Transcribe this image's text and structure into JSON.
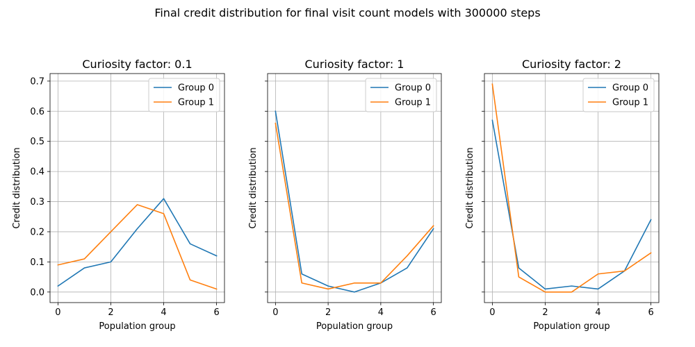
{
  "figure": {
    "suptitle": "Final credit distribution for final visit count models with 300000 steps"
  },
  "chart_data": [
    {
      "type": "line",
      "title": "Curiosity factor: 0.1",
      "xlabel": "Population group",
      "ylabel": "Credit distribution",
      "x": [
        0,
        1,
        2,
        3,
        4,
        5,
        6
      ],
      "xticks": [
        0,
        2,
        4,
        6
      ],
      "yticks": [
        0.0,
        0.1,
        0.2,
        0.3,
        0.4,
        0.5,
        0.6,
        0.7
      ],
      "xlim": [
        -0.3,
        6.3
      ],
      "ylim": [
        -0.035,
        0.725
      ],
      "grid": true,
      "legend": "top-right",
      "show_ytick_labels": true,
      "series": [
        {
          "name": "Group 0",
          "color": "#1f77b4",
          "values": [
            0.02,
            0.08,
            0.1,
            0.21,
            0.31,
            0.16,
            0.12
          ]
        },
        {
          "name": "Group 1",
          "color": "#ff7f0e",
          "values": [
            0.09,
            0.11,
            0.2,
            0.29,
            0.26,
            0.04,
            0.01
          ]
        }
      ]
    },
    {
      "type": "line",
      "title": "Curiosity factor: 1",
      "xlabel": "Population group",
      "ylabel": "Credit distribution",
      "x": [
        0,
        1,
        2,
        3,
        4,
        5,
        6
      ],
      "xticks": [
        0,
        2,
        4,
        6
      ],
      "yticks": [
        0.0,
        0.1,
        0.2,
        0.3,
        0.4,
        0.5,
        0.6,
        0.7
      ],
      "xlim": [
        -0.3,
        6.3
      ],
      "ylim": [
        -0.035,
        0.725
      ],
      "grid": true,
      "legend": "top-right",
      "show_ytick_labels": false,
      "series": [
        {
          "name": "Group 0",
          "color": "#1f77b4",
          "values": [
            0.6,
            0.06,
            0.02,
            0.0,
            0.03,
            0.08,
            0.21
          ]
        },
        {
          "name": "Group 1",
          "color": "#ff7f0e",
          "values": [
            0.56,
            0.03,
            0.01,
            0.03,
            0.03,
            0.12,
            0.22
          ]
        }
      ]
    },
    {
      "type": "line",
      "title": "Curiosity factor: 2",
      "xlabel": "Population group",
      "ylabel": "Credit distribution",
      "x": [
        0,
        1,
        2,
        3,
        4,
        5,
        6
      ],
      "xticks": [
        0,
        2,
        4,
        6
      ],
      "yticks": [
        0.0,
        0.1,
        0.2,
        0.3,
        0.4,
        0.5,
        0.6,
        0.7
      ],
      "xlim": [
        -0.3,
        6.3
      ],
      "ylim": [
        -0.035,
        0.725
      ],
      "grid": true,
      "legend": "top-right",
      "show_ytick_labels": false,
      "series": [
        {
          "name": "Group 0",
          "color": "#1f77b4",
          "values": [
            0.57,
            0.08,
            0.01,
            0.02,
            0.01,
            0.07,
            0.24
          ]
        },
        {
          "name": "Group 1",
          "color": "#ff7f0e",
          "values": [
            0.69,
            0.05,
            0.0,
            0.0,
            0.06,
            0.07,
            0.13
          ]
        }
      ]
    }
  ]
}
